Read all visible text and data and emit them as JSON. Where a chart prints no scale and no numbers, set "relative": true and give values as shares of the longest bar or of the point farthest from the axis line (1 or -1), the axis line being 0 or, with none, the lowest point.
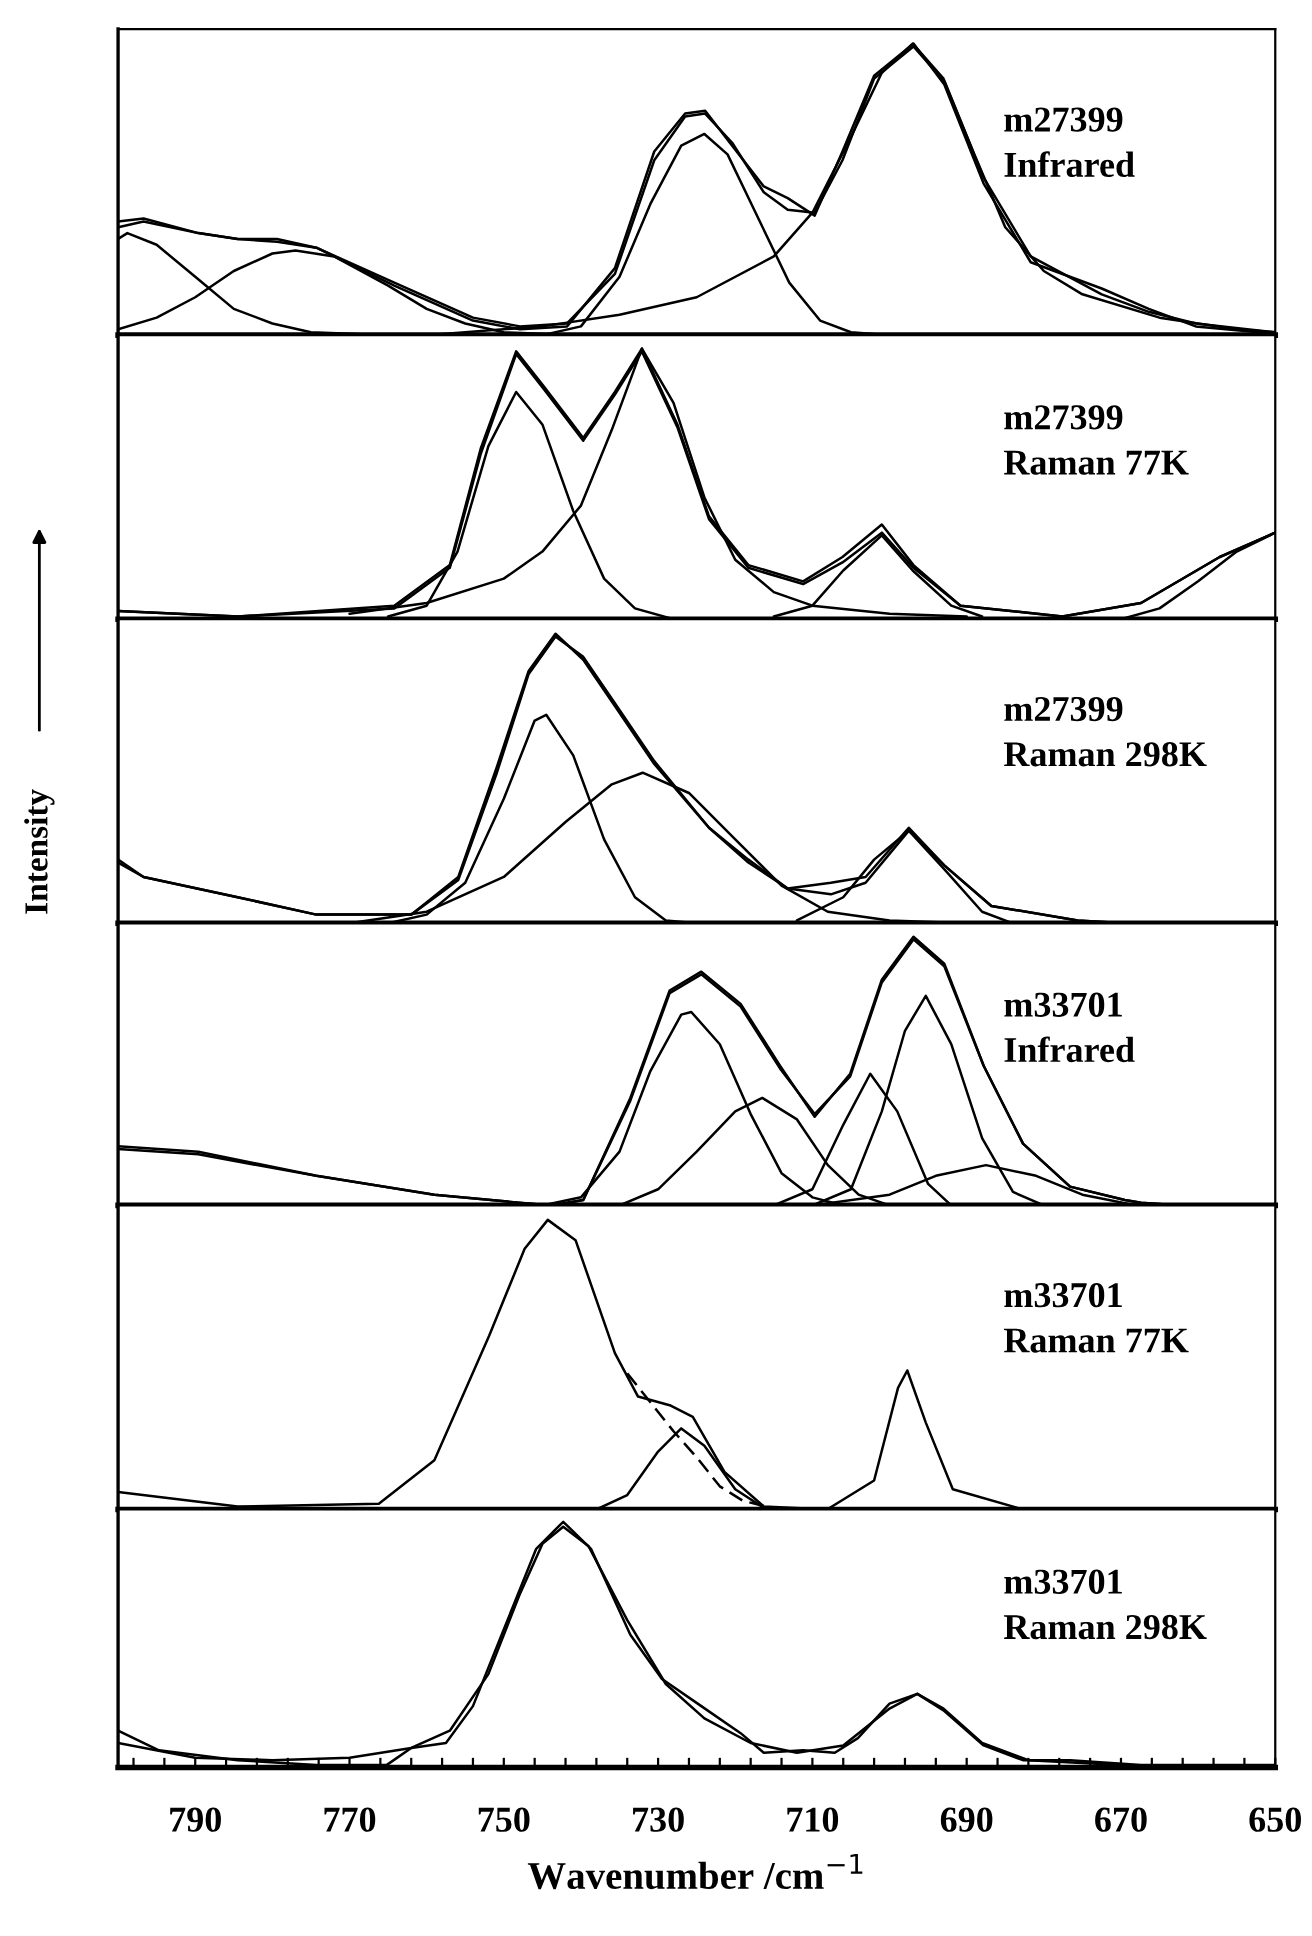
{
  "chart_data": [
    {
      "type": "line",
      "relative": true,
      "xlim": [
        800,
        650
      ],
      "tick_labels": false,
      "annotations": [
        "m27399\nInfrared"
      ],
      "series": [
        {
          "color": "#000000",
          "x": [
            800,
            796.7,
            789.6,
            784.5,
            779.4,
            774.3,
            764.2,
            754,
            747.9,
            741.8,
            735.6,
            730.5,
            726.5,
            723.9,
            720.4,
            716.3,
            713.2,
            709.7,
            706.1,
            702,
            696.9,
            692.9,
            687.8,
            681.7,
            672.5,
            666.4,
            660.3,
            650.1
          ],
          "values": [
            0.39,
            0.4,
            0.35,
            0.33,
            0.33,
            0.3,
            0.17,
            0.05,
            0.02,
            0.03,
            0.23,
            0.63,
            0.76,
            0.77,
            0.65,
            0.51,
            0.47,
            0.41,
            0.63,
            0.89,
            1.0,
            0.86,
            0.52,
            0.25,
            0.16,
            0.09,
            0.03,
            0.005
          ]
        },
        {
          "color": "#000000",
          "x": [
            800,
            796.7,
            789.6,
            784.5,
            779.4,
            774.3,
            764.2,
            754,
            747.9,
            741.8,
            735.6,
            730.5,
            726.5,
            723.9,
            720.4,
            716.3,
            713.2,
            709.7,
            706.1,
            702,
            696.9,
            692.9,
            687.8,
            681.7,
            672.5,
            666.4,
            660.3,
            650.1
          ],
          "values": [
            0.37,
            0.39,
            0.35,
            0.33,
            0.32,
            0.3,
            0.18,
            0.06,
            0.03,
            0.04,
            0.21,
            0.6,
            0.75,
            0.76,
            0.66,
            0.49,
            0.43,
            0.42,
            0.6,
            0.88,
            0.99,
            0.87,
            0.54,
            0.27,
            0.14,
            0.08,
            0.04,
            0.01
          ]
        },
        {
          "color": "#000000",
          "x": [
            800,
            798.8,
            795,
            790,
            785,
            780,
            775,
            765
          ],
          "values": [
            0.33,
            0.35,
            0.31,
            0.2,
            0.09,
            0.04,
            0.01,
            0.0
          ]
        },
        {
          "color": "#000000",
          "x": [
            800,
            795,
            790,
            785,
            780,
            777,
            772,
            765,
            760,
            755,
            750,
            740
          ],
          "values": [
            0.02,
            0.06,
            0.13,
            0.22,
            0.28,
            0.29,
            0.27,
            0.17,
            0.09,
            0.04,
            0.01,
            0.0
          ]
        },
        {
          "color": "#000000",
          "x": [
            745,
            740,
            735,
            731,
            727,
            724,
            721,
            717,
            713,
            709,
            705,
            700
          ],
          "values": [
            0.0,
            0.03,
            0.2,
            0.45,
            0.65,
            0.69,
            0.62,
            0.4,
            0.18,
            0.05,
            0.01,
            0.0
          ]
        },
        {
          "color": "#000000",
          "x": [
            760,
            745,
            735,
            725,
            715,
            710,
            705,
            701,
            697,
            693,
            689,
            685,
            680,
            675,
            665,
            655,
            650
          ],
          "values": [
            0.0,
            0.03,
            0.07,
            0.13,
            0.27,
            0.42,
            0.68,
            0.9,
            1.0,
            0.88,
            0.62,
            0.37,
            0.22,
            0.14,
            0.06,
            0.02,
            0.01
          ]
        }
      ]
    },
    {
      "type": "line",
      "relative": true,
      "xlim": [
        800,
        650
      ],
      "tick_labels": false,
      "annotations": [
        "m27399\nRaman 77K"
      ],
      "series": [
        {
          "color": "#000000",
          "x": [
            800,
            784.5,
            764.2,
            757,
            753,
            748.4,
            744.8,
            739.7,
            735.6,
            732.1,
            727.5,
            723.4,
            718.3,
            711.2,
            706.1,
            701,
            696.9,
            690.8,
            677.6,
            667.4,
            657.2,
            650
          ],
          "values": [
            0.03,
            0.01,
            0.05,
            0.2,
            0.63,
            0.99,
            0.86,
            0.67,
            0.84,
            1.0,
            0.72,
            0.38,
            0.2,
            0.14,
            0.23,
            0.35,
            0.2,
            0.05,
            0.01,
            0.06,
            0.23,
            0.32
          ]
        },
        {
          "color": "#000000",
          "x": [
            800,
            784.5,
            764.2,
            757,
            753,
            748.4,
            744.8,
            739.7,
            735.6,
            732.1,
            727.5,
            723.4,
            718.3,
            711.2,
            706.1,
            701,
            696.9,
            690.8,
            677.6,
            667.4,
            657.2,
            650
          ],
          "values": [
            0.03,
            0.01,
            0.04,
            0.19,
            0.61,
            0.98,
            0.85,
            0.66,
            0.83,
            0.99,
            0.71,
            0.37,
            0.19,
            0.13,
            0.21,
            0.32,
            0.19,
            0.05,
            0.01,
            0.06,
            0.23,
            0.32
          ]
        },
        {
          "color": "#000000",
          "x": [
            765,
            760,
            756,
            752,
            748.4,
            745,
            741,
            737,
            733,
            728
          ],
          "values": [
            0.01,
            0.05,
            0.25,
            0.64,
            0.84,
            0.72,
            0.4,
            0.15,
            0.04,
            0.0
          ]
        },
        {
          "color": "#000000",
          "x": [
            770,
            760,
            750,
            745,
            740,
            736,
            732.1,
            728,
            724,
            720,
            715,
            710,
            700,
            690
          ],
          "values": [
            0.02,
            0.06,
            0.15,
            0.25,
            0.42,
            0.7,
            1.0,
            0.8,
            0.45,
            0.22,
            0.1,
            0.05,
            0.02,
            0.01
          ]
        },
        {
          "color": "#000000",
          "x": [
            715,
            710,
            706,
            701,
            697,
            692,
            688
          ],
          "values": [
            0.01,
            0.05,
            0.18,
            0.31,
            0.18,
            0.05,
            0.01
          ]
        },
        {
          "color": "#000000",
          "x": [
            670,
            665,
            660,
            655,
            650
          ],
          "values": [
            0.0,
            0.04,
            0.14,
            0.25,
            0.32
          ]
        }
      ]
    },
    {
      "type": "line",
      "relative": true,
      "xlim": [
        800,
        650
      ],
      "tick_labels": false,
      "ylabel": "Intensity",
      "annotations": [
        "m27399\nRaman 298K"
      ],
      "series": [
        {
          "color": "#000000",
          "x": [
            800,
            796.7,
            784.5,
            774.3,
            762,
            755.9,
            750.9,
            746.8,
            743.3,
            739.7,
            735.6,
            730.5,
            723.4,
            718.3,
            713.2,
            707.6,
            703.1,
            697.5,
            692.9,
            686.8,
            675.6,
            669.5,
            662.3,
            650
          ],
          "values": [
            0.22,
            0.16,
            0.09,
            0.03,
            0.03,
            0.16,
            0.54,
            0.87,
            1.0,
            0.91,
            0.75,
            0.55,
            0.33,
            0.22,
            0.12,
            0.14,
            0.16,
            0.33,
            0.2,
            0.06,
            0.01,
            0.0,
            0.0,
            0.0
          ]
        },
        {
          "color": "#000000",
          "x": [
            800,
            796.7,
            784.5,
            774.3,
            762,
            755.9,
            750.9,
            746.8,
            743.3,
            739.7,
            735.6,
            730.5,
            723.4,
            718.3,
            713.2,
            707.6,
            703.1,
            697.5,
            692.9,
            686.8,
            675.6,
            669.5,
            662.3,
            650
          ],
          "values": [
            0.21,
            0.16,
            0.09,
            0.03,
            0.03,
            0.15,
            0.52,
            0.86,
            0.99,
            0.92,
            0.76,
            0.56,
            0.33,
            0.21,
            0.12,
            0.1,
            0.14,
            0.32,
            0.2,
            0.06,
            0.01,
            0.0,
            0.0,
            0.0
          ]
        },
        {
          "color": "#000000",
          "x": [
            765,
            760,
            755,
            750,
            746,
            744.5,
            741,
            737,
            733,
            729,
            725
          ],
          "values": [
            0.0,
            0.03,
            0.14,
            0.43,
            0.7,
            0.72,
            0.58,
            0.29,
            0.09,
            0.01,
            0.0
          ]
        },
        {
          "color": "#000000",
          "x": [
            770,
            760,
            750,
            742,
            736,
            732,
            726,
            720,
            714,
            708,
            700,
            690
          ],
          "values": [
            0.0,
            0.04,
            0.16,
            0.35,
            0.48,
            0.52,
            0.45,
            0.29,
            0.13,
            0.04,
            0.01,
            0.0
          ]
        },
        {
          "color": "#000000",
          "x": [
            712,
            706,
            702,
            697.5,
            693,
            688,
            684
          ],
          "values": [
            0.01,
            0.09,
            0.22,
            0.32,
            0.19,
            0.04,
            0.0
          ]
        }
      ]
    },
    {
      "type": "line",
      "relative": true,
      "xlim": [
        800,
        650
      ],
      "tick_labels": false,
      "annotations": [
        "m33701\nInfrared"
      ],
      "series": [
        {
          "color": "#000000",
          "x": [
            800,
            789.6,
            774.3,
            759,
            748,
            743.8,
            739.7,
            733.6,
            728.5,
            724.4,
            719.3,
            714.2,
            709.7,
            705.1,
            701,
            696.9,
            692.9,
            687.8,
            682.7,
            676.6,
            669.5,
            667.4,
            662.3,
            657.2,
            650
          ],
          "values": [
            0.22,
            0.2,
            0.11,
            0.04,
            0.01,
            0.0,
            0.02,
            0.4,
            0.8,
            0.87,
            0.75,
            0.52,
            0.33,
            0.49,
            0.84,
            1.0,
            0.9,
            0.52,
            0.23,
            0.07,
            0.02,
            0.01,
            0.0,
            0.0,
            0.0
          ]
        },
        {
          "color": "#000000",
          "x": [
            800,
            789.6,
            774.3,
            759,
            748,
            743.8,
            739.7,
            733.6,
            728.5,
            724.4,
            719.3,
            714.2,
            709.7,
            705.1,
            701,
            696.9,
            692.9,
            687.8,
            682.7,
            676.6,
            669.5,
            667.4,
            662.3,
            657.2,
            650
          ],
          "values": [
            0.21,
            0.19,
            0.11,
            0.04,
            0.01,
            0.0,
            0.02,
            0.39,
            0.79,
            0.86,
            0.74,
            0.51,
            0.34,
            0.48,
            0.83,
            0.99,
            0.89,
            0.52,
            0.23,
            0.07,
            0.02,
            0.01,
            0.0,
            0.0,
            0.0
          ]
        },
        {
          "color": "#000000",
          "x": [
            745,
            740,
            735,
            731,
            727,
            725.7,
            722,
            718,
            714,
            710,
            706
          ],
          "values": [
            0.0,
            0.03,
            0.2,
            0.5,
            0.71,
            0.72,
            0.6,
            0.34,
            0.12,
            0.03,
            0.0
          ]
        },
        {
          "color": "#000000",
          "x": [
            735,
            730,
            725,
            720,
            716.5,
            712,
            708,
            704,
            700
          ],
          "values": [
            0.0,
            0.06,
            0.2,
            0.35,
            0.4,
            0.32,
            0.15,
            0.04,
            0.0
          ]
        },
        {
          "color": "#000000",
          "x": [
            715,
            710,
            706,
            702.5,
            699,
            695,
            692
          ],
          "values": [
            0.0,
            0.06,
            0.3,
            0.49,
            0.35,
            0.08,
            0.0
          ]
        },
        {
          "color": "#000000",
          "x": [
            710,
            705,
            701,
            698,
            695.3,
            692,
            688,
            684,
            680
          ],
          "values": [
            0.0,
            0.06,
            0.35,
            0.65,
            0.78,
            0.6,
            0.25,
            0.05,
            0.0
          ]
        },
        {
          "color": "#000000",
          "x": [
            710,
            700,
            694,
            687.5,
            681,
            675,
            668
          ],
          "values": [
            0.0,
            0.04,
            0.11,
            0.15,
            0.11,
            0.04,
            0.0
          ]
        }
      ]
    },
    {
      "type": "line",
      "relative": true,
      "xlim": [
        800,
        650
      ],
      "tick_labels": false,
      "annotations": [
        "m33701\nRaman 77K"
      ],
      "series": [
        {
          "color": "#000000",
          "x": [
            800,
            784.5,
            766.2,
            759,
            751.9,
            747.3,
            744.3,
            740.7,
            735.6,
            732.6,
            728.5,
            725.5,
            721.4,
            716.3,
            708.1,
            702,
            698.9,
            697.7,
            695.3,
            691.8,
            682.7,
            650
          ],
          "values": [
            0.06,
            0.01,
            0.02,
            0.17,
            0.6,
            0.9,
            1.0,
            0.93,
            0.54,
            0.39,
            0.36,
            0.32,
            0.13,
            0.01,
            0.0,
            0.1,
            0.42,
            0.48,
            0.3,
            0.07,
            0.0,
            0.0
          ]
        },
        {
          "color": "#000000",
          "line_style": "dashed",
          "x": [
            734,
            731,
            728,
            725,
            722,
            719,
            716
          ],
          "values": [
            0.47,
            0.37,
            0.27,
            0.18,
            0.08,
            0.03,
            0.01
          ]
        },
        {
          "color": "#000000",
          "x": [
            738,
            734,
            730,
            727,
            724,
            720,
            716
          ],
          "values": [
            0.0,
            0.05,
            0.2,
            0.28,
            0.22,
            0.07,
            0.0
          ]
        }
      ]
    },
    {
      "type": "line",
      "relative": true,
      "xlim": [
        800,
        650
      ],
      "tick_labels": "x",
      "xlabel": "Wavenumber /cm$^{−1}$",
      "xticks": [
        790,
        770,
        750,
        730,
        710,
        690,
        670,
        650,
        {
          "value": 798,
          "label": null
        },
        {
          "value": 794,
          "label": null
        },
        {
          "value": 786,
          "label": null
        },
        {
          "value": 782,
          "label": null
        },
        {
          "value": 778,
          "label": null
        },
        {
          "value": 774,
          "label": null
        },
        {
          "value": 766,
          "label": null
        },
        {
          "value": 762,
          "label": null
        },
        {
          "value": 758,
          "label": null
        },
        {
          "value": 754,
          "label": null
        },
        {
          "value": 746,
          "label": null
        },
        {
          "value": 742,
          "label": null
        },
        {
          "value": 738,
          "label": null
        },
        {
          "value": 734,
          "label": null
        },
        {
          "value": 726,
          "label": null
        },
        {
          "value": 722,
          "label": null
        },
        {
          "value": 718,
          "label": null
        },
        {
          "value": 714,
          "label": null
        },
        {
          "value": 706,
          "label": null
        },
        {
          "value": 702,
          "label": null
        },
        {
          "value": 698,
          "label": null
        },
        {
          "value": 694,
          "label": null
        },
        {
          "value": 686,
          "label": null
        },
        {
          "value": 682,
          "label": null
        },
        {
          "value": 678,
          "label": null
        },
        {
          "value": 674,
          "label": null
        },
        {
          "value": 666,
          "label": null
        },
        {
          "value": 662,
          "label": null
        },
        {
          "value": 658,
          "label": null
        },
        {
          "value": 654,
          "label": null
        }
      ],
      "annotations": [
        "m33701\nRaman 298K"
      ],
      "series": [
        {
          "color": "#000000",
          "x": [
            800,
            794.7,
            784.5,
            774.3,
            765.2,
            762,
            757.5,
            754,
            749.9,
            745.8,
            742.3,
            738.7,
            733.6,
            729.5,
            724.4,
            719.3,
            716.3,
            711.2,
            707.1,
            704.1,
            700,
            696.4,
            692.9,
            687.8,
            682.7,
            676.6,
            667.4,
            650
          ],
          "values": [
            0.15,
            0.07,
            0.03,
            0.01,
            0.01,
            0.08,
            0.1,
            0.25,
            0.57,
            0.89,
            1.0,
            0.89,
            0.54,
            0.36,
            0.25,
            0.14,
            0.06,
            0.07,
            0.06,
            0.12,
            0.26,
            0.3,
            0.23,
            0.09,
            0.03,
            0.03,
            0.01,
            0.01
          ]
        },
        {
          "color": "#000000",
          "x": [
            800,
            790,
            780,
            770,
            762,
            757,
            752,
            748,
            745,
            742.3,
            739,
            734,
            729,
            724,
            718,
            712,
            706,
            700,
            696.4,
            693,
            688,
            682,
            670,
            650
          ],
          "values": [
            0.1,
            0.04,
            0.03,
            0.04,
            0.08,
            0.15,
            0.38,
            0.7,
            0.91,
            0.98,
            0.9,
            0.6,
            0.34,
            0.2,
            0.1,
            0.06,
            0.09,
            0.24,
            0.3,
            0.24,
            0.1,
            0.03,
            0.01,
            0.0
          ]
        }
      ]
    }
  ]
}
